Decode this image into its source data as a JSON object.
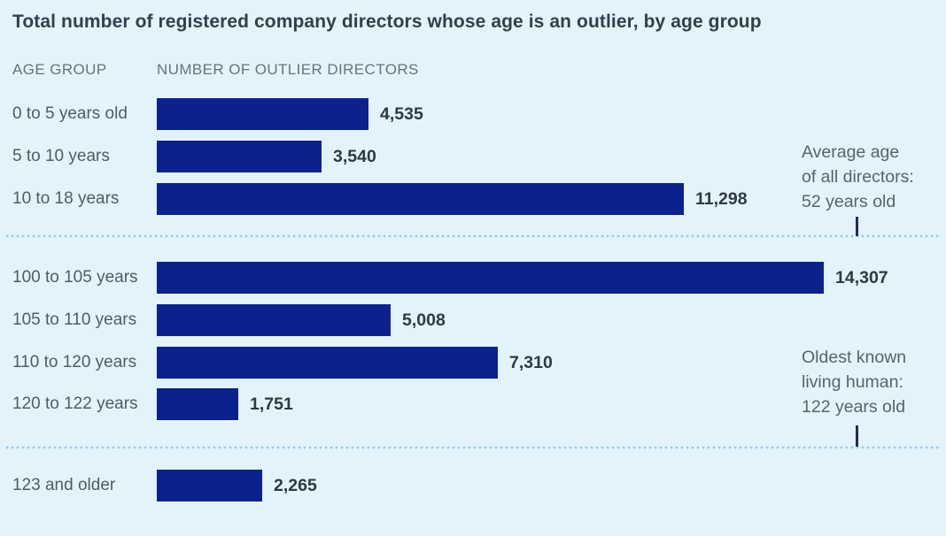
{
  "title": "Total number of registered company directors whose age is an outlier, by age group",
  "columns": {
    "age_group": "AGE GROUP",
    "directors": "NUMBER OF OUTLIER DIRECTORS"
  },
  "chart_data": {
    "type": "bar",
    "orientation": "horizontal",
    "title": "Total number of registered company directors whose age is an outlier, by age group",
    "xlabel": "NUMBER OF OUTLIER DIRECTORS",
    "ylabel": "AGE GROUP",
    "max_value": 14307,
    "legend": "none",
    "grid": "off",
    "rows": [
      {
        "label": "0 to 5 years old",
        "value": 4535,
        "value_label": "4,535"
      },
      {
        "label": "5 to 10 years",
        "value": 3540,
        "value_label": "3,540"
      },
      {
        "label": "10 to 18 years",
        "value": 11298,
        "value_label": "11,298"
      },
      {
        "label": "100 to 105 years",
        "value": 14307,
        "value_label": "14,307"
      },
      {
        "label": "105 to 110 years",
        "value": 5008,
        "value_label": "5,008"
      },
      {
        "label": "110 to 120 years",
        "value": 7310,
        "value_label": "7,310"
      },
      {
        "label": "120 to 122 years",
        "value": 1751,
        "value_label": "1,751"
      },
      {
        "label": "123 and older",
        "value": 2265,
        "value_label": "2,265"
      }
    ],
    "annotations": [
      {
        "lines": [
          "Average age",
          "of all directors:",
          "52 years old"
        ]
      },
      {
        "lines": [
          "Oldest known",
          "living human:",
          "122 years old"
        ]
      }
    ]
  },
  "colors": {
    "background": "#e3f3fb",
    "bar": "#0b218d",
    "dots": "#8ecbe9",
    "title-text": "#333f4c",
    "label-text": "#505c67",
    "header-text": "#67727e",
    "value-text": "#2e3945",
    "annotation-text": "#57636e",
    "tick": "#1c2d63"
  }
}
